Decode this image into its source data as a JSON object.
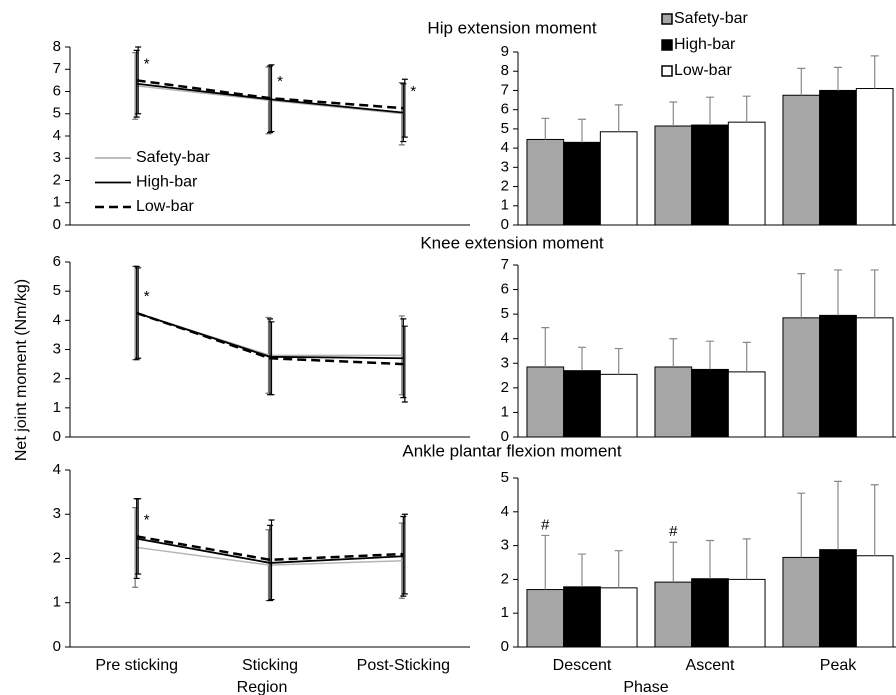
{
  "ylabel": "Net joint moment (Nm/kg)",
  "chart_data": [
    {
      "type": "line",
      "title": "Hip extension moment",
      "ylim": [
        0,
        8
      ],
      "yticks": [
        0,
        1,
        2,
        3,
        4,
        5,
        6,
        7,
        8
      ],
      "legend": "lower left",
      "annotations": [
        "*",
        "*",
        "*"
      ],
      "series": [
        {
          "name": "Safety-bar",
          "color": "#b4b4b4",
          "dash": false,
          "values": [
            6.25,
            5.6,
            5.0
          ],
          "errors": [
            1.5,
            1.5,
            1.4
          ]
        },
        {
          "name": "High-bar",
          "color": "#000000",
          "dash": false,
          "values": [
            6.35,
            5.65,
            5.05
          ],
          "errors": [
            1.5,
            1.5,
            1.3
          ]
        },
        {
          "name": "Low-bar",
          "color": "#000000",
          "dash": true,
          "values": [
            6.5,
            5.7,
            5.25
          ],
          "errors": [
            1.5,
            1.5,
            1.3
          ]
        }
      ]
    },
    {
      "type": "bar",
      "ylim": [
        0,
        9
      ],
      "yticks": [
        0,
        1,
        2,
        3,
        4,
        5,
        6,
        7,
        8,
        9
      ],
      "legend": "top",
      "series": [
        {
          "name": "Safety-bar",
          "color": "#a6a6a6",
          "values": [
            4.45,
            5.15,
            6.75
          ],
          "errors": [
            1.1,
            1.25,
            1.4
          ]
        },
        {
          "name": "High-bar",
          "color": "#000000",
          "values": [
            4.3,
            5.2,
            7.0
          ],
          "errors": [
            1.2,
            1.45,
            1.2
          ]
        },
        {
          "name": "Low-bar",
          "color": "#ffffff",
          "values": [
            4.85,
            5.35,
            7.1
          ],
          "errors": [
            1.4,
            1.35,
            1.7
          ]
        }
      ]
    },
    {
      "type": "line",
      "title": "Knee extension moment",
      "ylim": [
        0,
        6
      ],
      "yticks": [
        0,
        1,
        2,
        3,
        4,
        5,
        6
      ],
      "annotations": [
        "*",
        null,
        null
      ],
      "series": [
        {
          "color": "#b4b4b4",
          "dash": false,
          "values": [
            4.25,
            2.8,
            2.8
          ],
          "errors": [
            1.6,
            1.3,
            1.35
          ]
        },
        {
          "color": "#000000",
          "dash": false,
          "values": [
            4.25,
            2.75,
            2.7
          ],
          "errors": [
            1.6,
            1.3,
            1.35
          ]
        },
        {
          "color": "#000000",
          "dash": true,
          "values": [
            4.25,
            2.7,
            2.5
          ],
          "errors": [
            1.55,
            1.25,
            1.3
          ]
        }
      ]
    },
    {
      "type": "bar",
      "ylim": [
        0,
        7
      ],
      "yticks": [
        0,
        1,
        2,
        3,
        4,
        5,
        6,
        7
      ],
      "series": [
        {
          "color": "#a6a6a6",
          "values": [
            2.85,
            2.85,
            4.85
          ],
          "errors": [
            1.6,
            1.15,
            1.8
          ]
        },
        {
          "color": "#000000",
          "values": [
            2.7,
            2.75,
            4.95
          ],
          "errors": [
            0.95,
            1.15,
            1.85
          ]
        },
        {
          "color": "#ffffff",
          "values": [
            2.55,
            2.65,
            4.85
          ],
          "errors": [
            1.05,
            1.2,
            1.95
          ]
        }
      ]
    },
    {
      "type": "line",
      "title": "Ankle plantar flexion moment",
      "ylim": [
        0,
        4
      ],
      "yticks": [
        0,
        1,
        2,
        3,
        4
      ],
      "categories": [
        "Pre sticking",
        "Sticking",
        "Post-Sticking"
      ],
      "xlabel": "Region",
      "annotations": [
        "*",
        null,
        null
      ],
      "series": [
        {
          "color": "#b4b4b4",
          "dash": false,
          "values": [
            2.25,
            1.85,
            1.95
          ],
          "errors": [
            0.9,
            0.8,
            0.85
          ]
        },
        {
          "color": "#000000",
          "dash": false,
          "values": [
            2.45,
            1.9,
            2.05
          ],
          "errors": [
            0.9,
            0.85,
            0.9
          ]
        },
        {
          "color": "#000000",
          "dash": true,
          "values": [
            2.5,
            1.97,
            2.1
          ],
          "errors": [
            0.85,
            0.9,
            0.9
          ]
        }
      ]
    },
    {
      "type": "bar",
      "ylim": [
        0,
        5
      ],
      "yticks": [
        0,
        1,
        2,
        3,
        4,
        5
      ],
      "categories": [
        "Descent",
        "Ascent",
        "Peak"
      ],
      "xlabel": "Phase",
      "series": [
        {
          "color": "#a6a6a6",
          "values": [
            1.7,
            1.92,
            2.65
          ],
          "errors": [
            1.6,
            1.18,
            1.9
          ],
          "annotations": [
            "#",
            "#",
            null
          ]
        },
        {
          "color": "#000000",
          "values": [
            1.78,
            2.02,
            2.88
          ],
          "errors": [
            0.97,
            1.13,
            2.02
          ]
        },
        {
          "color": "#ffffff",
          "values": [
            1.75,
            2.0,
            2.7
          ],
          "errors": [
            1.1,
            1.2,
            2.1
          ]
        }
      ]
    }
  ]
}
